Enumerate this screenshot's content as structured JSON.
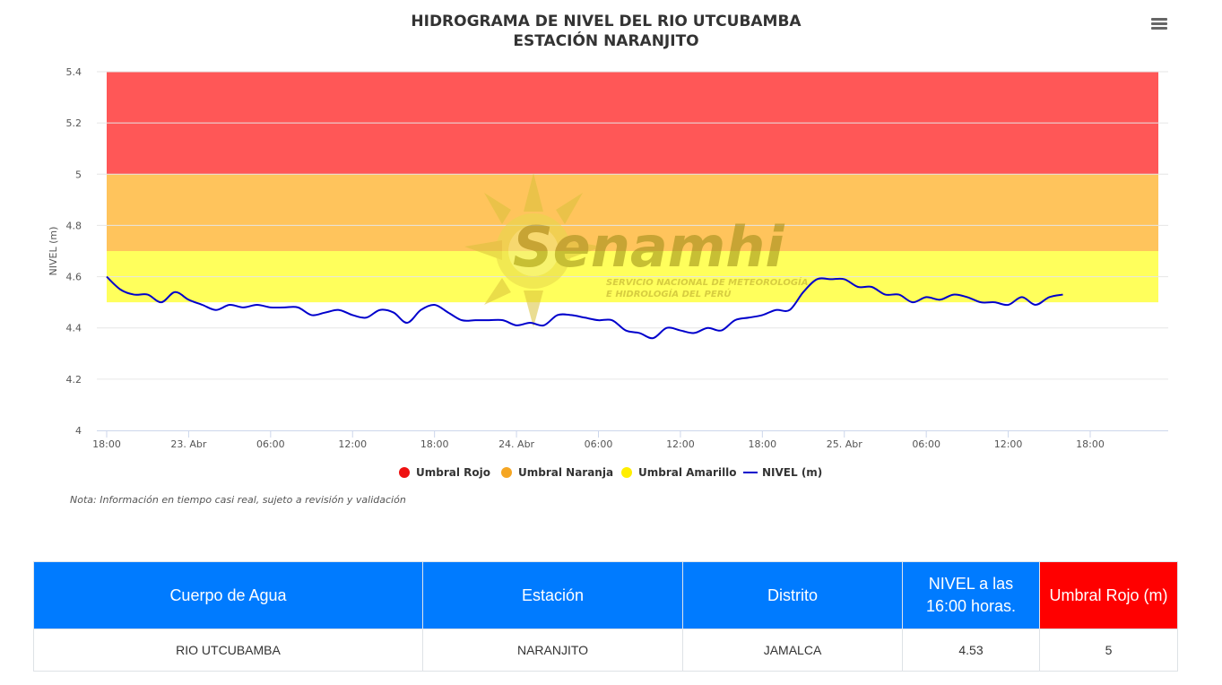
{
  "chart_data": {
    "type": "line",
    "title": "HIDROGRAMA DE NIVEL DEL RIO UTCUBAMBA",
    "subtitle": "ESTACIÓN NARANJITO",
    "ylabel": "NIVEL (m)",
    "xlabel": "",
    "ylim": [
      4,
      5.4
    ],
    "yticks": [
      4,
      4.2,
      4.4,
      4.6,
      4.8,
      5,
      5.2,
      5.4
    ],
    "xlim": [
      "2023-04-22 18:00",
      "2023-04-25 22:00"
    ],
    "xtick_labels": [
      "18:00",
      "23. Abr",
      "06:00",
      "12:00",
      "18:00",
      "24. Abr",
      "06:00",
      "12:00",
      "18:00",
      "25. Abr",
      "06:00",
      "12:00",
      "18:00"
    ],
    "grid": true,
    "legend_position": "bottom-center",
    "bands": [
      {
        "name": "Umbral Rojo",
        "from": 5,
        "to": 5.4,
        "color": "#ff5757"
      },
      {
        "name": "Umbral Naranja",
        "from": 4.7,
        "to": 5,
        "color": "#ffc45c"
      },
      {
        "name": "Umbral Amarillo",
        "from": 4.5,
        "to": 4.7,
        "color": "#ffff5c"
      }
    ],
    "legend": [
      {
        "label": "Umbral Rojo",
        "color": "#ee1111",
        "symbol": "dot"
      },
      {
        "label": "Umbral Naranja",
        "color": "#f5a623",
        "symbol": "dot"
      },
      {
        "label": "Umbral Amarillo",
        "color": "#ffee00",
        "symbol": "dot"
      },
      {
        "label": "NIVEL (m)",
        "color": "#0000cc",
        "symbol": "line"
      }
    ],
    "series": [
      {
        "name": "NIVEL (m)",
        "color": "#0000cc",
        "x_hours": [
          0,
          1,
          2,
          3,
          4,
          5,
          6,
          7,
          8,
          9,
          10,
          11,
          12,
          13,
          14,
          15,
          16,
          17,
          18,
          19,
          20,
          21,
          22,
          23,
          24,
          25,
          26,
          27,
          28,
          29,
          30,
          31,
          32,
          33,
          34,
          35,
          36,
          37,
          38,
          39,
          40,
          41,
          42,
          43,
          44,
          45,
          46,
          47,
          48,
          49,
          50,
          51,
          52,
          53,
          54,
          55,
          56,
          57,
          58,
          59,
          60,
          61,
          62,
          63,
          64,
          65,
          66,
          67,
          68,
          69,
          70
        ],
        "values": [
          4.6,
          4.55,
          4.53,
          4.53,
          4.5,
          4.54,
          4.51,
          4.49,
          4.47,
          4.49,
          4.48,
          4.49,
          4.48,
          4.48,
          4.48,
          4.45,
          4.46,
          4.47,
          4.45,
          4.44,
          4.47,
          4.46,
          4.42,
          4.47,
          4.49,
          4.46,
          4.43,
          4.43,
          4.43,
          4.43,
          4.41,
          4.42,
          4.41,
          4.45,
          4.45,
          4.44,
          4.43,
          4.43,
          4.39,
          4.38,
          4.36,
          4.4,
          4.39,
          4.38,
          4.4,
          4.39,
          4.43,
          4.44,
          4.45,
          4.47,
          4.47,
          4.54,
          4.59,
          4.59,
          4.59,
          4.56,
          4.56,
          4.53,
          4.53,
          4.5,
          4.52,
          4.51,
          4.53,
          4.52,
          4.5,
          4.5,
          4.49,
          4.52,
          4.49,
          4.52,
          4.53
        ]
      }
    ]
  },
  "watermark": {
    "brand": "Senamhi",
    "line1": "SERVICIO NACIONAL DE METEOROLOGÍA",
    "line2": "E HIDROLOGÍA DEL PERÚ"
  },
  "note": "Nota: Información en tiempo casi real, sujeto a revisión y validación",
  "menu_icon": "hamburger-menu-icon",
  "table": {
    "headers": [
      "Cuerpo de Agua",
      "Estación",
      "Distrito",
      "NIVEL a las 16:00 horas.",
      "Umbral Rojo (m)"
    ],
    "header_color": "#007bff",
    "threshold_header_color": "#ff0000",
    "row": [
      "RIO UTCUBAMBA",
      "NARANJITO",
      "JAMALCA",
      "4.53",
      "5"
    ]
  }
}
